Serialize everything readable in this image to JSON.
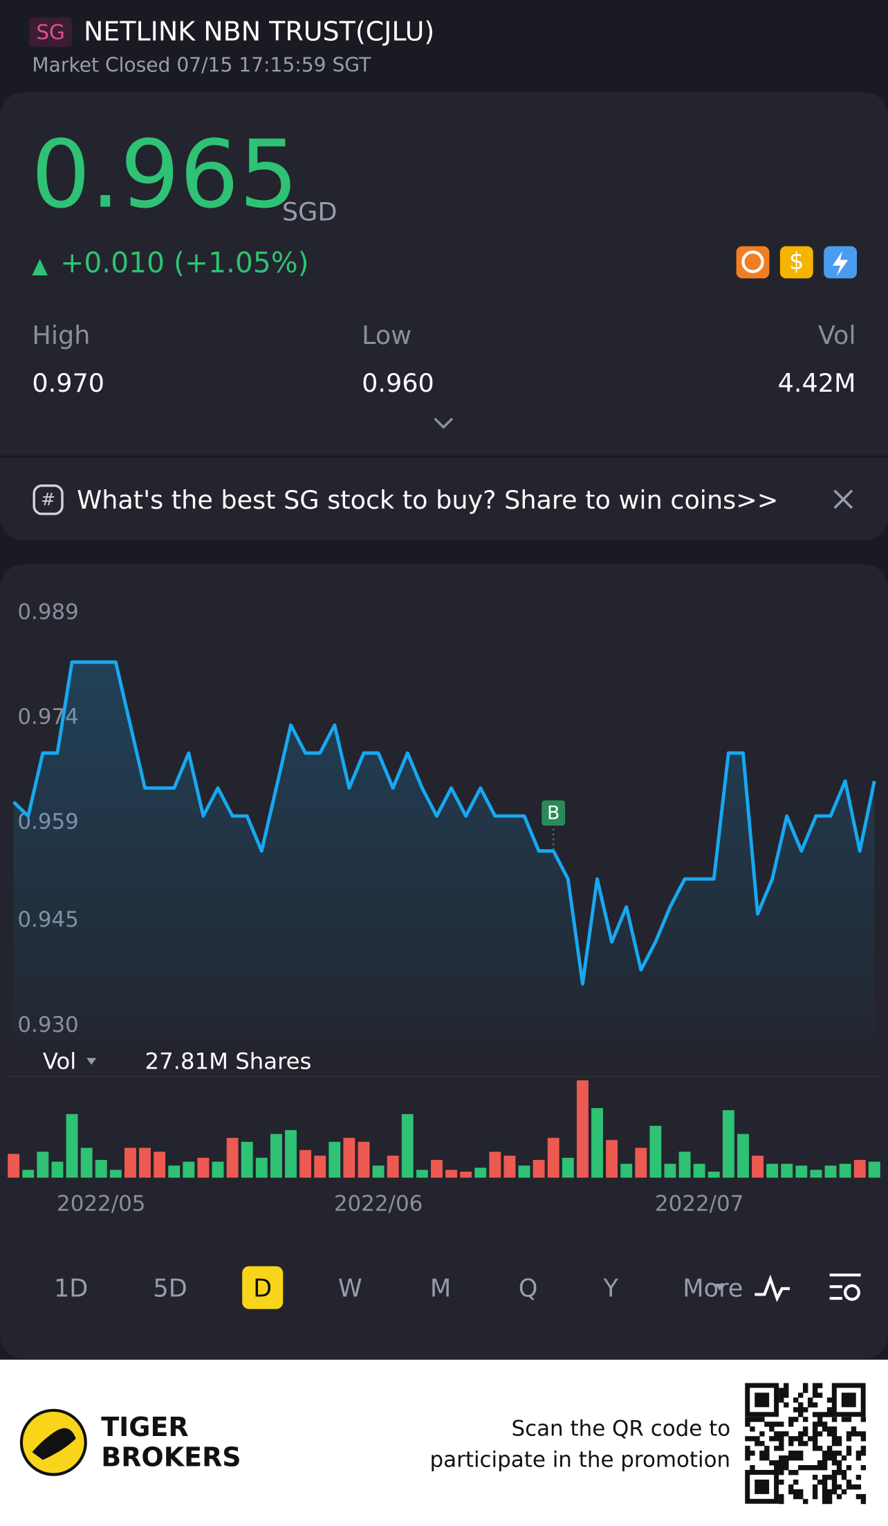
{
  "header": {
    "badge": "SG",
    "title": "NETLINK NBN TRUST(CJLU)",
    "status": "Market Closed 07/15 17:15:59 SGT"
  },
  "quote": {
    "price": "0.965",
    "currency": "SGD",
    "change": "+0.010 (+1.05%)",
    "stats": [
      {
        "label": "High",
        "value": "0.970"
      },
      {
        "label": "Low",
        "value": "0.960"
      },
      {
        "label": "Vol",
        "value": "4.42M"
      }
    ]
  },
  "banner": {
    "text": "What's the best SG stock to buy? Share to win coins>>"
  },
  "chart_data": {
    "type": "line",
    "categories": [
      null,
      null,
      null,
      null,
      null,
      null,
      "2022/05",
      null,
      null,
      null,
      null,
      null,
      null,
      null,
      null,
      null,
      null,
      null,
      null,
      null,
      null,
      null,
      null,
      null,
      null,
      "2022/06",
      null,
      null,
      null,
      null,
      null,
      null,
      null,
      null,
      null,
      null,
      null,
      null,
      null,
      null,
      null,
      null,
      null,
      null,
      null,
      null,
      null,
      "2022/07",
      null,
      null,
      null,
      null,
      null,
      null,
      null,
      null,
      null,
      null,
      null,
      null
    ],
    "values": [
      0.962,
      0.96,
      0.969,
      0.969,
      0.982,
      0.982,
      0.982,
      0.982,
      0.973,
      0.964,
      0.964,
      0.964,
      0.969,
      0.96,
      0.964,
      0.96,
      0.96,
      0.955,
      0.964,
      0.973,
      0.969,
      0.969,
      0.973,
      0.964,
      0.969,
      0.969,
      0.964,
      0.969,
      0.964,
      0.96,
      0.964,
      0.96,
      0.964,
      0.96,
      0.96,
      0.96,
      0.955,
      0.955,
      0.951,
      0.936,
      0.951,
      0.942,
      0.947,
      0.938,
      0.942,
      0.947,
      0.951,
      0.951,
      0.951,
      0.969,
      0.969,
      0.946,
      0.951,
      0.96,
      0.955,
      0.96,
      0.96,
      0.965,
      0.955,
      0.965
    ],
    "color": "#18a8f0",
    "ylim": [
      0.93,
      0.989
    ],
    "yticks": [
      0.989,
      0.974,
      0.959,
      0.945,
      {
        "value": 0.93,
        "label": "0.930"
      }
    ],
    "marker": {
      "label": "B",
      "index": 37
    },
    "volume": {
      "label": "Vol",
      "total": "27.81M Shares",
      "values": [
        6.7,
        2.2,
        7.3,
        4.5,
        17.9,
        8.4,
        5.0,
        2.2,
        8.4,
        8.4,
        7.3,
        3.4,
        4.5,
        5.6,
        4.5,
        11.2,
        10.1,
        5.6,
        12.3,
        13.4,
        7.8,
        6.2,
        10.1,
        11.2,
        10.1,
        3.4,
        6.2,
        17.9,
        2.2,
        5.0,
        2.2,
        1.7,
        2.8,
        7.3,
        6.2,
        3.4,
        5.0,
        11.2,
        5.6,
        27.4,
        19.6,
        10.6,
        3.9,
        8.4,
        14.6,
        3.9,
        7.3,
        3.9,
        1.7,
        19.0,
        12.3,
        6.2,
        3.9,
        3.9,
        3.4,
        2.2,
        3.4,
        3.9,
        5.0,
        4.5
      ],
      "up": [
        false,
        true,
        true,
        true,
        true,
        true,
        true,
        true,
        false,
        false,
        false,
        true,
        true,
        false,
        true,
        false,
        true,
        true,
        true,
        true,
        false,
        false,
        true,
        false,
        false,
        true,
        false,
        true,
        true,
        false,
        false,
        false,
        true,
        false,
        false,
        true,
        false,
        false,
        true,
        false,
        true,
        false,
        true,
        false,
        true,
        true,
        true,
        true,
        true,
        true,
        true,
        false,
        true,
        true,
        true,
        true,
        true,
        true,
        false,
        true
      ],
      "up_color": "#2fc274",
      "down_color": "#ec5a52"
    }
  },
  "periods": [
    "1D",
    "5D",
    "D",
    "W",
    "M",
    "Q",
    "Y",
    "More"
  ],
  "selected_period": 2,
  "footer": {
    "brand": [
      "TIGER",
      "BROKERS"
    ],
    "promo": [
      "Scan the QR code to",
      "participate in the promotion"
    ]
  }
}
